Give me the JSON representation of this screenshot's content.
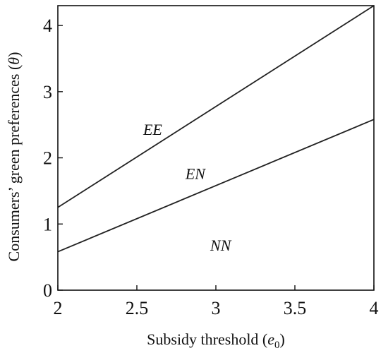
{
  "chart_data": {
    "type": "line",
    "title": "",
    "xlabel": "Subsidy threshold (",
    "xlabel_symbol": "e",
    "xlabel_subscript": "0",
    "xlabel_close": ")",
    "ylabel": "Consumers’ green preferences (",
    "ylabel_symbol": "θ",
    "ylabel_close": ")",
    "xlim": [
      2,
      4
    ],
    "ylim": [
      0,
      4.3
    ],
    "x_ticks": [
      2,
      2.5,
      3,
      3.5,
      4
    ],
    "x_tick_labels": [
      "2",
      "2.5",
      "3",
      "3.5",
      "4"
    ],
    "y_ticks": [
      0,
      1,
      2,
      3,
      4
    ],
    "y_tick_labels": [
      "0",
      "1",
      "2",
      "3",
      "4"
    ],
    "grid": false,
    "series": [
      {
        "x": [
          2,
          4
        ],
        "y": [
          1.25,
          4.3
        ]
      },
      {
        "x": [
          2,
          4
        ],
        "y": [
          0.58,
          2.58
        ]
      }
    ],
    "annotations": [
      {
        "text": "EE",
        "x": 2.6,
        "y": 2.35
      },
      {
        "text": "EN",
        "x": 2.87,
        "y": 1.68
      },
      {
        "text": "NN",
        "x": 3.03,
        "y": 0.6
      }
    ]
  }
}
